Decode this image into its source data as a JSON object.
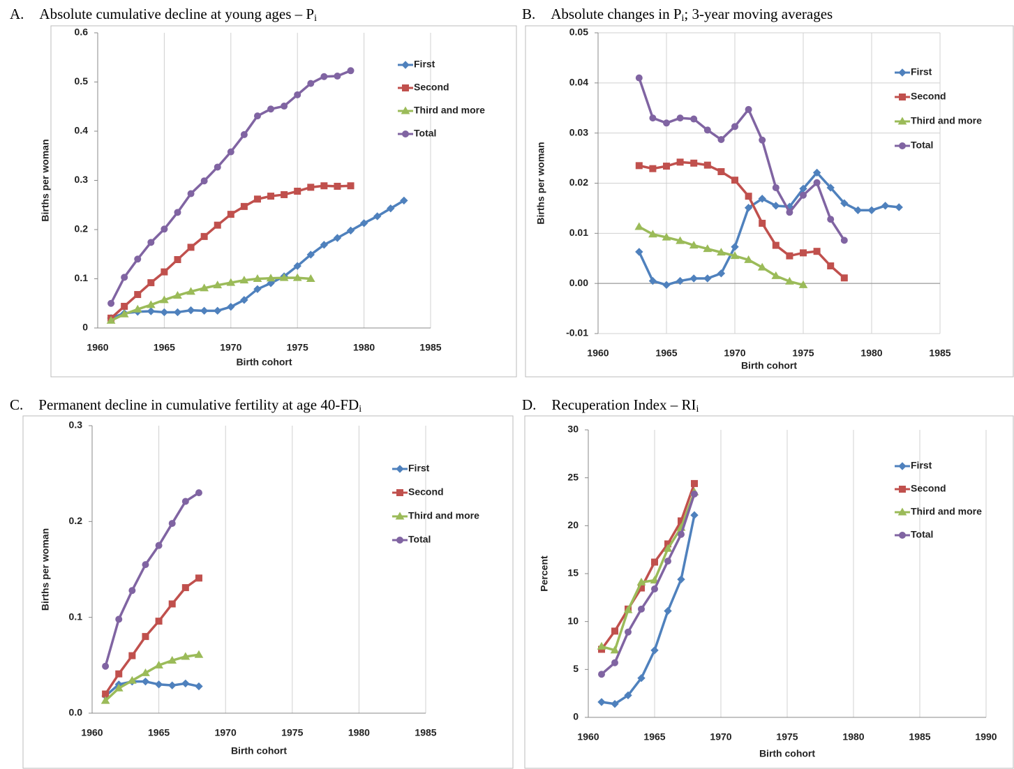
{
  "chart_data": [
    {
      "type": "line",
      "panel": "A.",
      "title": [
        {
          "text": "Absolute cumulative decline at young ages – P"
        },
        {
          "text": "i",
          "sub": true
        }
      ],
      "xlabel": "Birth cohort",
      "ylabel": "Births per woman",
      "xlim": [
        1960,
        1985
      ],
      "xticks": [
        1960,
        1965,
        1970,
        1975,
        1980,
        1985
      ],
      "ylim": [
        0,
        0.6
      ],
      "yticks": [
        0,
        0.1,
        0.2,
        0.3,
        0.4,
        0.5,
        0.6
      ],
      "grid": "x",
      "legend": "upper right",
      "series": [
        {
          "name": "First",
          "color": "#4f81bd",
          "marker": "diamond",
          "x": [
            1961,
            1962,
            1963,
            1964,
            1965,
            1966,
            1967,
            1968,
            1969,
            1970,
            1971,
            1972,
            1973,
            1974,
            1975,
            1976,
            1977,
            1978,
            1979,
            1980,
            1981,
            1982,
            1983
          ],
          "values": [
            0.02,
            0.03,
            0.033,
            0.034,
            0.032,
            0.032,
            0.036,
            0.035,
            0.035,
            0.043,
            0.057,
            0.079,
            0.091,
            0.105,
            0.126,
            0.149,
            0.169,
            0.183,
            0.198,
            0.213,
            0.227,
            0.243,
            0.259
          ]
        },
        {
          "name": "Second",
          "color": "#c0504d",
          "marker": "square",
          "x": [
            1961,
            1962,
            1963,
            1964,
            1965,
            1966,
            1967,
            1968,
            1969,
            1970,
            1971,
            1972,
            1973,
            1974,
            1975,
            1976,
            1977,
            1978,
            1979
          ],
          "values": [
            0.02,
            0.044,
            0.068,
            0.092,
            0.114,
            0.139,
            0.164,
            0.186,
            0.209,
            0.231,
            0.247,
            0.262,
            0.268,
            0.271,
            0.278,
            0.286,
            0.289,
            0.288,
            0.289
          ]
        },
        {
          "name": "Third and more",
          "color": "#9bbb59",
          "marker": "triangle",
          "x": [
            1961,
            1962,
            1963,
            1964,
            1965,
            1966,
            1967,
            1968,
            1969,
            1970,
            1971,
            1972,
            1973,
            1974,
            1975,
            1976
          ],
          "values": [
            0.015,
            0.028,
            0.038,
            0.047,
            0.057,
            0.066,
            0.074,
            0.081,
            0.087,
            0.092,
            0.097,
            0.1,
            0.101,
            0.102,
            0.102,
            0.1
          ]
        },
        {
          "name": "Total",
          "color": "#8064a2",
          "marker": "circle",
          "x": [
            1961,
            1962,
            1963,
            1964,
            1965,
            1966,
            1967,
            1968,
            1969,
            1970,
            1971,
            1972,
            1973,
            1974,
            1975,
            1976,
            1977,
            1978,
            1979
          ],
          "values": [
            0.05,
            0.103,
            0.14,
            0.174,
            0.201,
            0.235,
            0.273,
            0.299,
            0.327,
            0.358,
            0.393,
            0.431,
            0.445,
            0.451,
            0.474,
            0.497,
            0.511,
            0.512,
            0.523
          ]
        }
      ]
    },
    {
      "type": "line",
      "panel": "B.",
      "title": [
        {
          "text": "Absolute changes in P"
        },
        {
          "text": "i",
          "sub": true
        },
        {
          "text": "; 3-year moving averages"
        }
      ],
      "xlabel": "Birth cohort",
      "ylabel": "Births per woman",
      "xlim": [
        1960,
        1985
      ],
      "xticks": [
        1960,
        1965,
        1970,
        1975,
        1980,
        1985
      ],
      "ylim": [
        -0.01,
        0.05
      ],
      "yticks": [
        -0.01,
        {
          "value": 0,
          "label": "0.00"
        },
        0.01,
        0.02,
        0.03,
        0.04,
        0.05
      ],
      "grid": "both",
      "legend": "upper right",
      "series": [
        {
          "name": "First",
          "color": "#4f81bd",
          "marker": "diamond",
          "x": [
            1963,
            1964,
            1965,
            1966,
            1967,
            1968,
            1969,
            1970,
            1971,
            1972,
            1973,
            1974,
            1975,
            1976,
            1977,
            1978,
            1979,
            1980,
            1981,
            1982
          ],
          "values": [
            0.0063,
            0.0005,
            -0.0003,
            0.0005,
            0.001,
            0.001,
            0.002,
            0.0073,
            0.0151,
            0.0169,
            0.0155,
            0.0153,
            0.0189,
            0.0221,
            0.0191,
            0.016,
            0.0146,
            0.0146,
            0.0155,
            0.0152
          ]
        },
        {
          "name": "Second",
          "color": "#c0504d",
          "marker": "square",
          "x": [
            1963,
            1964,
            1965,
            1966,
            1967,
            1968,
            1969,
            1970,
            1971,
            1972,
            1973,
            1974,
            1975,
            1976,
            1977,
            1978
          ],
          "values": [
            0.0235,
            0.0229,
            0.0234,
            0.0242,
            0.024,
            0.0236,
            0.0223,
            0.0206,
            0.0174,
            0.012,
            0.0076,
            0.0055,
            0.0061,
            0.0064,
            0.0035,
            0.0011
          ]
        },
        {
          "name": "Third and more",
          "color": "#9bbb59",
          "marker": "triangle",
          "x": [
            1963,
            1964,
            1965,
            1966,
            1967,
            1968,
            1969,
            1970,
            1971,
            1972,
            1973,
            1974,
            1975
          ],
          "values": [
            0.0113,
            0.0098,
            0.0092,
            0.0085,
            0.0076,
            0.0069,
            0.0062,
            0.0055,
            0.0047,
            0.0032,
            0.0015,
            0.0004,
            -0.0003
          ]
        },
        {
          "name": "Total",
          "color": "#8064a2",
          "marker": "circle",
          "x": [
            1963,
            1964,
            1965,
            1966,
            1967,
            1968,
            1969,
            1970,
            1971,
            1972,
            1973,
            1974,
            1975,
            1976,
            1977,
            1978
          ],
          "values": [
            0.041,
            0.033,
            0.032,
            0.033,
            0.0328,
            0.0306,
            0.0287,
            0.0313,
            0.0347,
            0.0286,
            0.0191,
            0.0142,
            0.0176,
            0.0201,
            0.0128,
            0.0086
          ]
        }
      ]
    },
    {
      "type": "line",
      "panel": "C.",
      "title": [
        {
          "text": "Permanent decline in cumulative fertility at age 40-FD"
        },
        {
          "text": "i",
          "sub": true
        }
      ],
      "xlabel": "Birth cohort",
      "ylabel": "Births per woman",
      "xlim": [
        1960,
        1985
      ],
      "xticks": [
        1960,
        1965,
        1970,
        1975,
        1980,
        1985
      ],
      "ylim": [
        0,
        0.3
      ],
      "yticks": [
        {
          "value": 0,
          "label": "0.0"
        },
        0.1,
        0.2,
        0.3
      ],
      "grid": "x",
      "legend": "upper right",
      "series": [
        {
          "name": "First",
          "color": "#4f81bd",
          "marker": "diamond",
          "x": [
            1961,
            1962,
            1963,
            1964,
            1965,
            1966,
            1967,
            1968
          ],
          "values": [
            0.018,
            0.03,
            0.033,
            0.033,
            0.03,
            0.029,
            0.031,
            0.028
          ]
        },
        {
          "name": "Second",
          "color": "#c0504d",
          "marker": "square",
          "x": [
            1961,
            1962,
            1963,
            1964,
            1965,
            1966,
            1967,
            1968
          ],
          "values": [
            0.02,
            0.041,
            0.06,
            0.08,
            0.096,
            0.114,
            0.131,
            0.141
          ]
        },
        {
          "name": "Third and more",
          "color": "#9bbb59",
          "marker": "triangle",
          "x": [
            1961,
            1962,
            1963,
            1964,
            1965,
            1966,
            1967,
            1968
          ],
          "values": [
            0.013,
            0.026,
            0.034,
            0.042,
            0.05,
            0.055,
            0.059,
            0.061
          ]
        },
        {
          "name": "Total",
          "color": "#8064a2",
          "marker": "circle",
          "x": [
            1961,
            1962,
            1963,
            1964,
            1965,
            1966,
            1967,
            1968
          ],
          "values": [
            0.049,
            0.098,
            0.128,
            0.155,
            0.175,
            0.198,
            0.221,
            0.23
          ]
        }
      ]
    },
    {
      "type": "line",
      "panel": "D.",
      "title": [
        {
          "text": "Recuperation Index – RI"
        },
        {
          "text": "i",
          "sub": true
        }
      ],
      "xlabel": "Birth cohort",
      "ylabel": "Percent",
      "xlim": [
        1960,
        1990
      ],
      "xticks": [
        1960,
        1965,
        1970,
        1975,
        1980,
        1985,
        1990
      ],
      "ylim": [
        0,
        30
      ],
      "yticks": [
        0,
        5,
        10,
        15,
        20,
        25,
        30
      ],
      "grid": "x",
      "legend": "upper right",
      "series": [
        {
          "name": "First",
          "color": "#4f81bd",
          "marker": "diamond",
          "x": [
            1961,
            1962,
            1963,
            1964,
            1965,
            1966,
            1967,
            1968
          ],
          "values": [
            1.6,
            1.4,
            2.3,
            4.1,
            7.0,
            11.1,
            14.4,
            21.1
          ]
        },
        {
          "name": "Second",
          "color": "#c0504d",
          "marker": "square",
          "x": [
            1961,
            1962,
            1963,
            1964,
            1965,
            1966,
            1967,
            1968
          ],
          "values": [
            7.1,
            9.0,
            11.3,
            13.5,
            16.2,
            18.1,
            20.5,
            24.4
          ]
        },
        {
          "name": "Third and more",
          "color": "#9bbb59",
          "marker": "triangle",
          "x": [
            1961,
            1962,
            1963,
            1964,
            1965,
            1966,
            1967,
            1968
          ],
          "values": [
            7.4,
            7.0,
            11.2,
            14.1,
            14.3,
            17.6,
            19.8,
            23.5
          ]
        },
        {
          "name": "Total",
          "color": "#8064a2",
          "marker": "circle",
          "x": [
            1961,
            1962,
            1963,
            1964,
            1965,
            1966,
            1967,
            1968
          ],
          "values": [
            4.5,
            5.7,
            8.9,
            11.3,
            13.4,
            16.3,
            19.1,
            23.3
          ]
        }
      ]
    }
  ]
}
